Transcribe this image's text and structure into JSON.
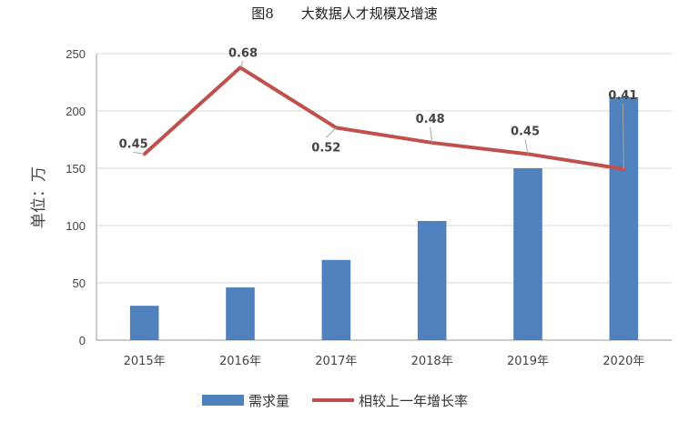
{
  "chart_data": {
    "type": "bar+line",
    "title_prefix": "图8",
    "title": "大数据人才规模及增速",
    "ylabel": "单位：万",
    "ylim": [
      0,
      250
    ],
    "yticks": [
      0,
      50,
      100,
      150,
      200,
      250
    ],
    "grid": true,
    "legend_position": "bottom",
    "categories": [
      "2015年",
      "2016年",
      "2017年",
      "2018年",
      "2019年",
      "2020年"
    ],
    "series": [
      {
        "name": "需求量",
        "type": "bar",
        "color": "#4f81bd",
        "values": [
          30,
          46,
          70,
          104,
          150,
          212
        ]
      },
      {
        "name": "相较上一年增长率",
        "type": "line",
        "color": "#c0504d",
        "values": [
          0.45,
          0.68,
          0.52,
          0.48,
          0.45,
          0.41
        ],
        "labels": [
          "0.45",
          "0.68",
          "0.52",
          "0.48",
          "0.45",
          "0.41"
        ]
      }
    ]
  }
}
